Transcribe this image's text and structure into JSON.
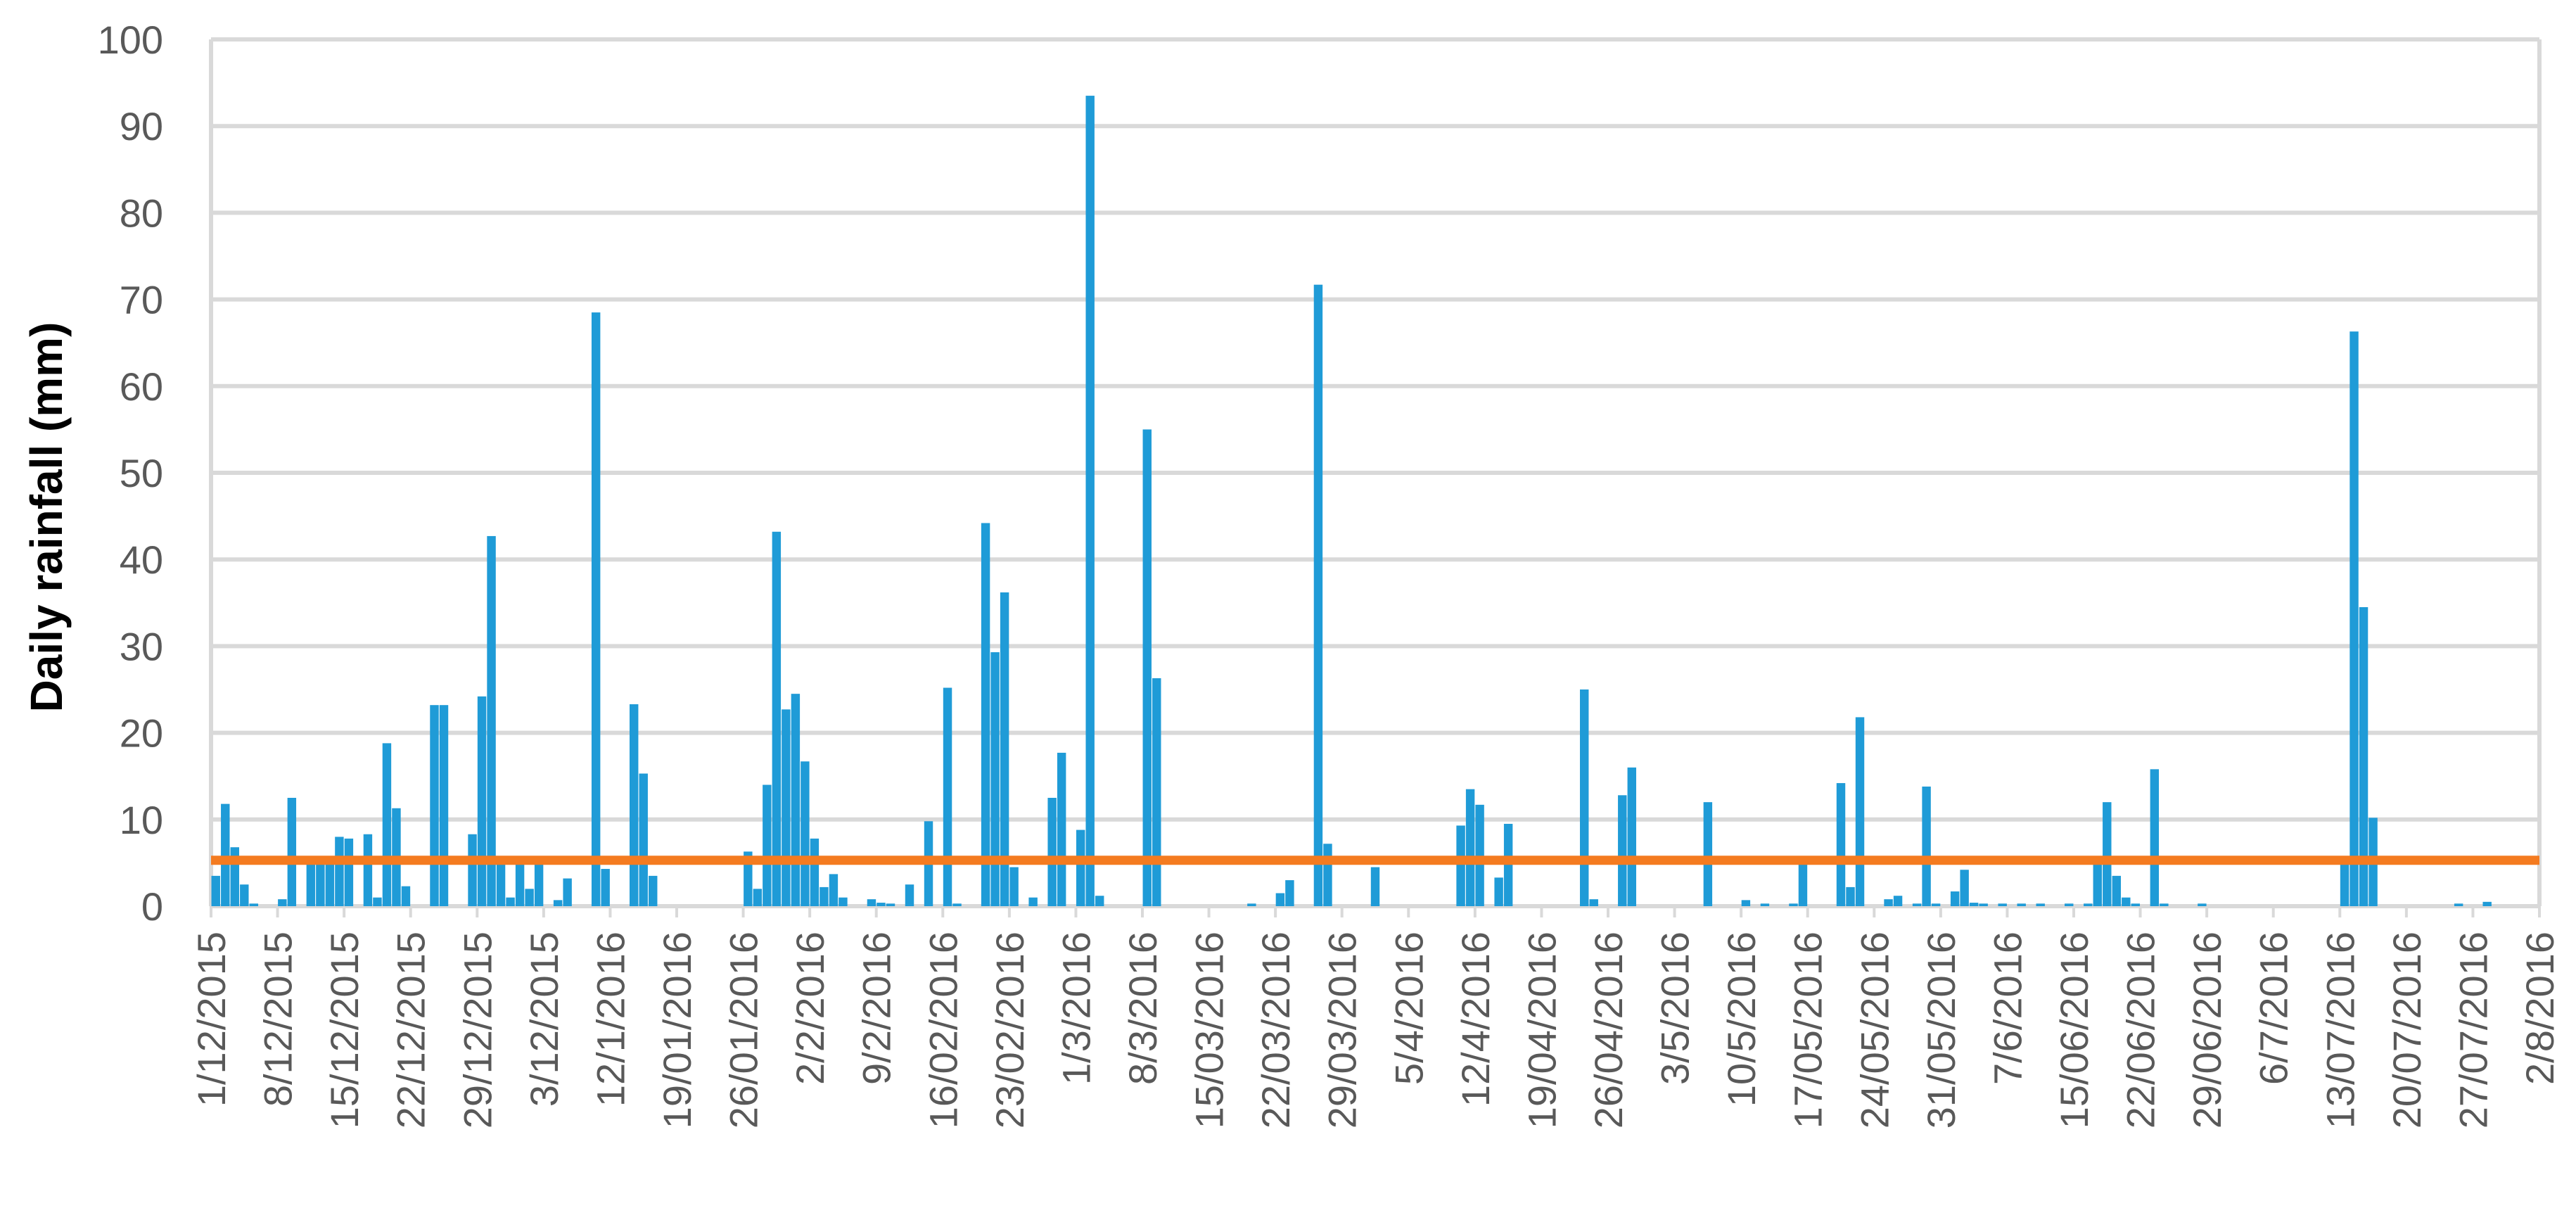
{
  "chart_data": {
    "type": "bar",
    "title": "",
    "xlabel": "",
    "ylabel": "Daily rainfall (mm)",
    "ylim": [
      0,
      100
    ],
    "yticks": [
      0,
      10,
      20,
      30,
      40,
      50,
      60,
      70,
      80,
      90,
      100
    ],
    "grid": true,
    "legend": "none",
    "x_tick_labels": [
      "1/12/2015",
      "8/12/2015",
      "15/12/2015",
      "22/12/2015",
      "29/12/2015",
      "3/12/2015",
      "12/1/2016",
      "19/01/2016",
      "26/01/2016",
      "2/2/2016",
      "9/2/2016",
      "16/02/2016",
      "23/02/2016",
      "1/3/2016",
      "8/3/2016",
      "15/03/2016",
      "22/03/2016",
      "29/03/2016",
      "5/4/2016",
      "12/4/2016",
      "19/04/2016",
      "26/04/2016",
      "3/5/2016",
      "10/5/2016",
      "17/05/2016",
      "24/05/2016",
      "31/05/2016",
      "7/6/2016",
      "15/06/2016",
      "22/06/2016",
      "29/06/2016",
      "6/7/2016",
      "13/07/2016",
      "20/07/2016",
      "27/07/2016",
      "2/8/2016"
    ],
    "bar_color": "#1f9bd7",
    "threshold_color": "#f47b20",
    "threshold": 5.3,
    "series": [
      {
        "values": [
          {
            "date": "2015-12-01",
            "mm": 3.5
          },
          {
            "date": "2015-12-02",
            "mm": 11.8
          },
          {
            "date": "2015-12-03",
            "mm": 6.8
          },
          {
            "date": "2015-12-04",
            "mm": 2.5
          },
          {
            "date": "2015-12-05",
            "mm": 0.3
          },
          {
            "date": "2015-12-08",
            "mm": 0.8
          },
          {
            "date": "2015-12-09",
            "mm": 12.5
          },
          {
            "date": "2015-12-11",
            "mm": 5.0
          },
          {
            "date": "2015-12-12",
            "mm": 5.0
          },
          {
            "date": "2015-12-13",
            "mm": 5.0
          },
          {
            "date": "2015-12-14",
            "mm": 8.0
          },
          {
            "date": "2015-12-15",
            "mm": 7.8
          },
          {
            "date": "2015-12-17",
            "mm": 8.3
          },
          {
            "date": "2015-12-18",
            "mm": 1.0
          },
          {
            "date": "2015-12-19",
            "mm": 18.8
          },
          {
            "date": "2015-12-20",
            "mm": 11.3
          },
          {
            "date": "2015-12-21",
            "mm": 2.3
          },
          {
            "date": "2015-12-24",
            "mm": 23.2
          },
          {
            "date": "2015-12-25",
            "mm": 23.2
          },
          {
            "date": "2015-12-28",
            "mm": 8.3
          },
          {
            "date": "2015-12-29",
            "mm": 24.2
          },
          {
            "date": "2015-12-30",
            "mm": 42.7
          },
          {
            "date": "2015-12-31",
            "mm": 5.0
          },
          {
            "date": "2016-01-01",
            "mm": 1.0
          },
          {
            "date": "2016-01-02",
            "mm": 5.0
          },
          {
            "date": "2016-01-03",
            "mm": 2.0
          },
          {
            "date": "2016-01-04",
            "mm": 5.8
          },
          {
            "date": "2016-01-06",
            "mm": 0.7
          },
          {
            "date": "2016-01-07",
            "mm": 3.2
          },
          {
            "date": "2016-01-10",
            "mm": 68.5
          },
          {
            "date": "2016-01-11",
            "mm": 4.3
          },
          {
            "date": "2016-01-14",
            "mm": 23.3
          },
          {
            "date": "2016-01-15",
            "mm": 15.3
          },
          {
            "date": "2016-01-16",
            "mm": 3.5
          },
          {
            "date": "2016-01-26",
            "mm": 6.3
          },
          {
            "date": "2016-01-27",
            "mm": 2.0
          },
          {
            "date": "2016-01-28",
            "mm": 14.0
          },
          {
            "date": "2016-01-29",
            "mm": 43.2
          },
          {
            "date": "2016-01-30",
            "mm": 22.7
          },
          {
            "date": "2016-01-31",
            "mm": 24.5
          },
          {
            "date": "2016-02-01",
            "mm": 16.7
          },
          {
            "date": "2016-02-02",
            "mm": 7.8
          },
          {
            "date": "2016-02-03",
            "mm": 2.2
          },
          {
            "date": "2016-02-04",
            "mm": 3.7
          },
          {
            "date": "2016-02-05",
            "mm": 1.0
          },
          {
            "date": "2016-02-08",
            "mm": 0.8
          },
          {
            "date": "2016-02-09",
            "mm": 0.4
          },
          {
            "date": "2016-02-10",
            "mm": 0.3
          },
          {
            "date": "2016-02-12",
            "mm": 2.5
          },
          {
            "date": "2016-02-14",
            "mm": 9.8
          },
          {
            "date": "2016-02-16",
            "mm": 25.2
          },
          {
            "date": "2016-02-17",
            "mm": 0.3
          },
          {
            "date": "2016-02-20",
            "mm": 44.2
          },
          {
            "date": "2016-02-21",
            "mm": 29.3
          },
          {
            "date": "2016-02-22",
            "mm": 36.2
          },
          {
            "date": "2016-02-23",
            "mm": 4.5
          },
          {
            "date": "2016-02-25",
            "mm": 1.0
          },
          {
            "date": "2016-02-27",
            "mm": 12.5
          },
          {
            "date": "2016-02-28",
            "mm": 17.7
          },
          {
            "date": "2016-03-01",
            "mm": 8.8
          },
          {
            "date": "2016-03-02",
            "mm": 93.5
          },
          {
            "date": "2016-03-03",
            "mm": 1.2
          },
          {
            "date": "2016-03-08",
            "mm": 55.0
          },
          {
            "date": "2016-03-09",
            "mm": 26.3
          },
          {
            "date": "2016-03-19",
            "mm": 0.3
          },
          {
            "date": "2016-03-22",
            "mm": 1.5
          },
          {
            "date": "2016-03-23",
            "mm": 3.0
          },
          {
            "date": "2016-03-26",
            "mm": 71.7
          },
          {
            "date": "2016-03-27",
            "mm": 7.2
          },
          {
            "date": "2016-04-01",
            "mm": 4.5
          },
          {
            "date": "2016-04-10",
            "mm": 9.3
          },
          {
            "date": "2016-04-11",
            "mm": 13.5
          },
          {
            "date": "2016-04-12",
            "mm": 11.7
          },
          {
            "date": "2016-04-14",
            "mm": 3.3
          },
          {
            "date": "2016-04-15",
            "mm": 9.5
          },
          {
            "date": "2016-04-23",
            "mm": 25.0
          },
          {
            "date": "2016-04-24",
            "mm": 0.8
          },
          {
            "date": "2016-04-27",
            "mm": 12.8
          },
          {
            "date": "2016-04-28",
            "mm": 16.0
          },
          {
            "date": "2016-05-06",
            "mm": 12.0
          },
          {
            "date": "2016-05-10",
            "mm": 0.7
          },
          {
            "date": "2016-05-12",
            "mm": 0.3
          },
          {
            "date": "2016-05-15",
            "mm": 0.3
          },
          {
            "date": "2016-05-16",
            "mm": 5.3
          },
          {
            "date": "2016-05-20",
            "mm": 14.2
          },
          {
            "date": "2016-05-21",
            "mm": 2.2
          },
          {
            "date": "2016-05-22",
            "mm": 21.8
          },
          {
            "date": "2016-05-25",
            "mm": 0.8
          },
          {
            "date": "2016-05-26",
            "mm": 1.2
          },
          {
            "date": "2016-05-28",
            "mm": 0.3
          },
          {
            "date": "2016-05-29",
            "mm": 13.8
          },
          {
            "date": "2016-05-30",
            "mm": 0.3
          },
          {
            "date": "2016-06-01",
            "mm": 1.7
          },
          {
            "date": "2016-06-02",
            "mm": 4.2
          },
          {
            "date": "2016-06-03",
            "mm": 0.4
          },
          {
            "date": "2016-06-04",
            "mm": 0.3
          },
          {
            "date": "2016-06-06",
            "mm": 0.3
          },
          {
            "date": "2016-06-08",
            "mm": 0.3
          },
          {
            "date": "2016-06-10",
            "mm": 0.3
          },
          {
            "date": "2016-06-13",
            "mm": 0.3
          },
          {
            "date": "2016-06-15",
            "mm": 0.3
          },
          {
            "date": "2016-06-16",
            "mm": 5.8
          },
          {
            "date": "2016-06-17",
            "mm": 12.0
          },
          {
            "date": "2016-06-18",
            "mm": 3.5
          },
          {
            "date": "2016-06-19",
            "mm": 1.0
          },
          {
            "date": "2016-06-20",
            "mm": 0.3
          },
          {
            "date": "2016-06-22",
            "mm": 15.8
          },
          {
            "date": "2016-06-23",
            "mm": 0.3
          },
          {
            "date": "2016-06-27",
            "mm": 0.3
          },
          {
            "date": "2016-07-12",
            "mm": 5.8
          },
          {
            "date": "2016-07-13",
            "mm": 66.3
          },
          {
            "date": "2016-07-14",
            "mm": 34.5
          },
          {
            "date": "2016-07-15",
            "mm": 10.2
          },
          {
            "date": "2016-07-24",
            "mm": 0.3
          },
          {
            "date": "2016-07-27",
            "mm": 0.5
          }
        ]
      }
    ]
  }
}
